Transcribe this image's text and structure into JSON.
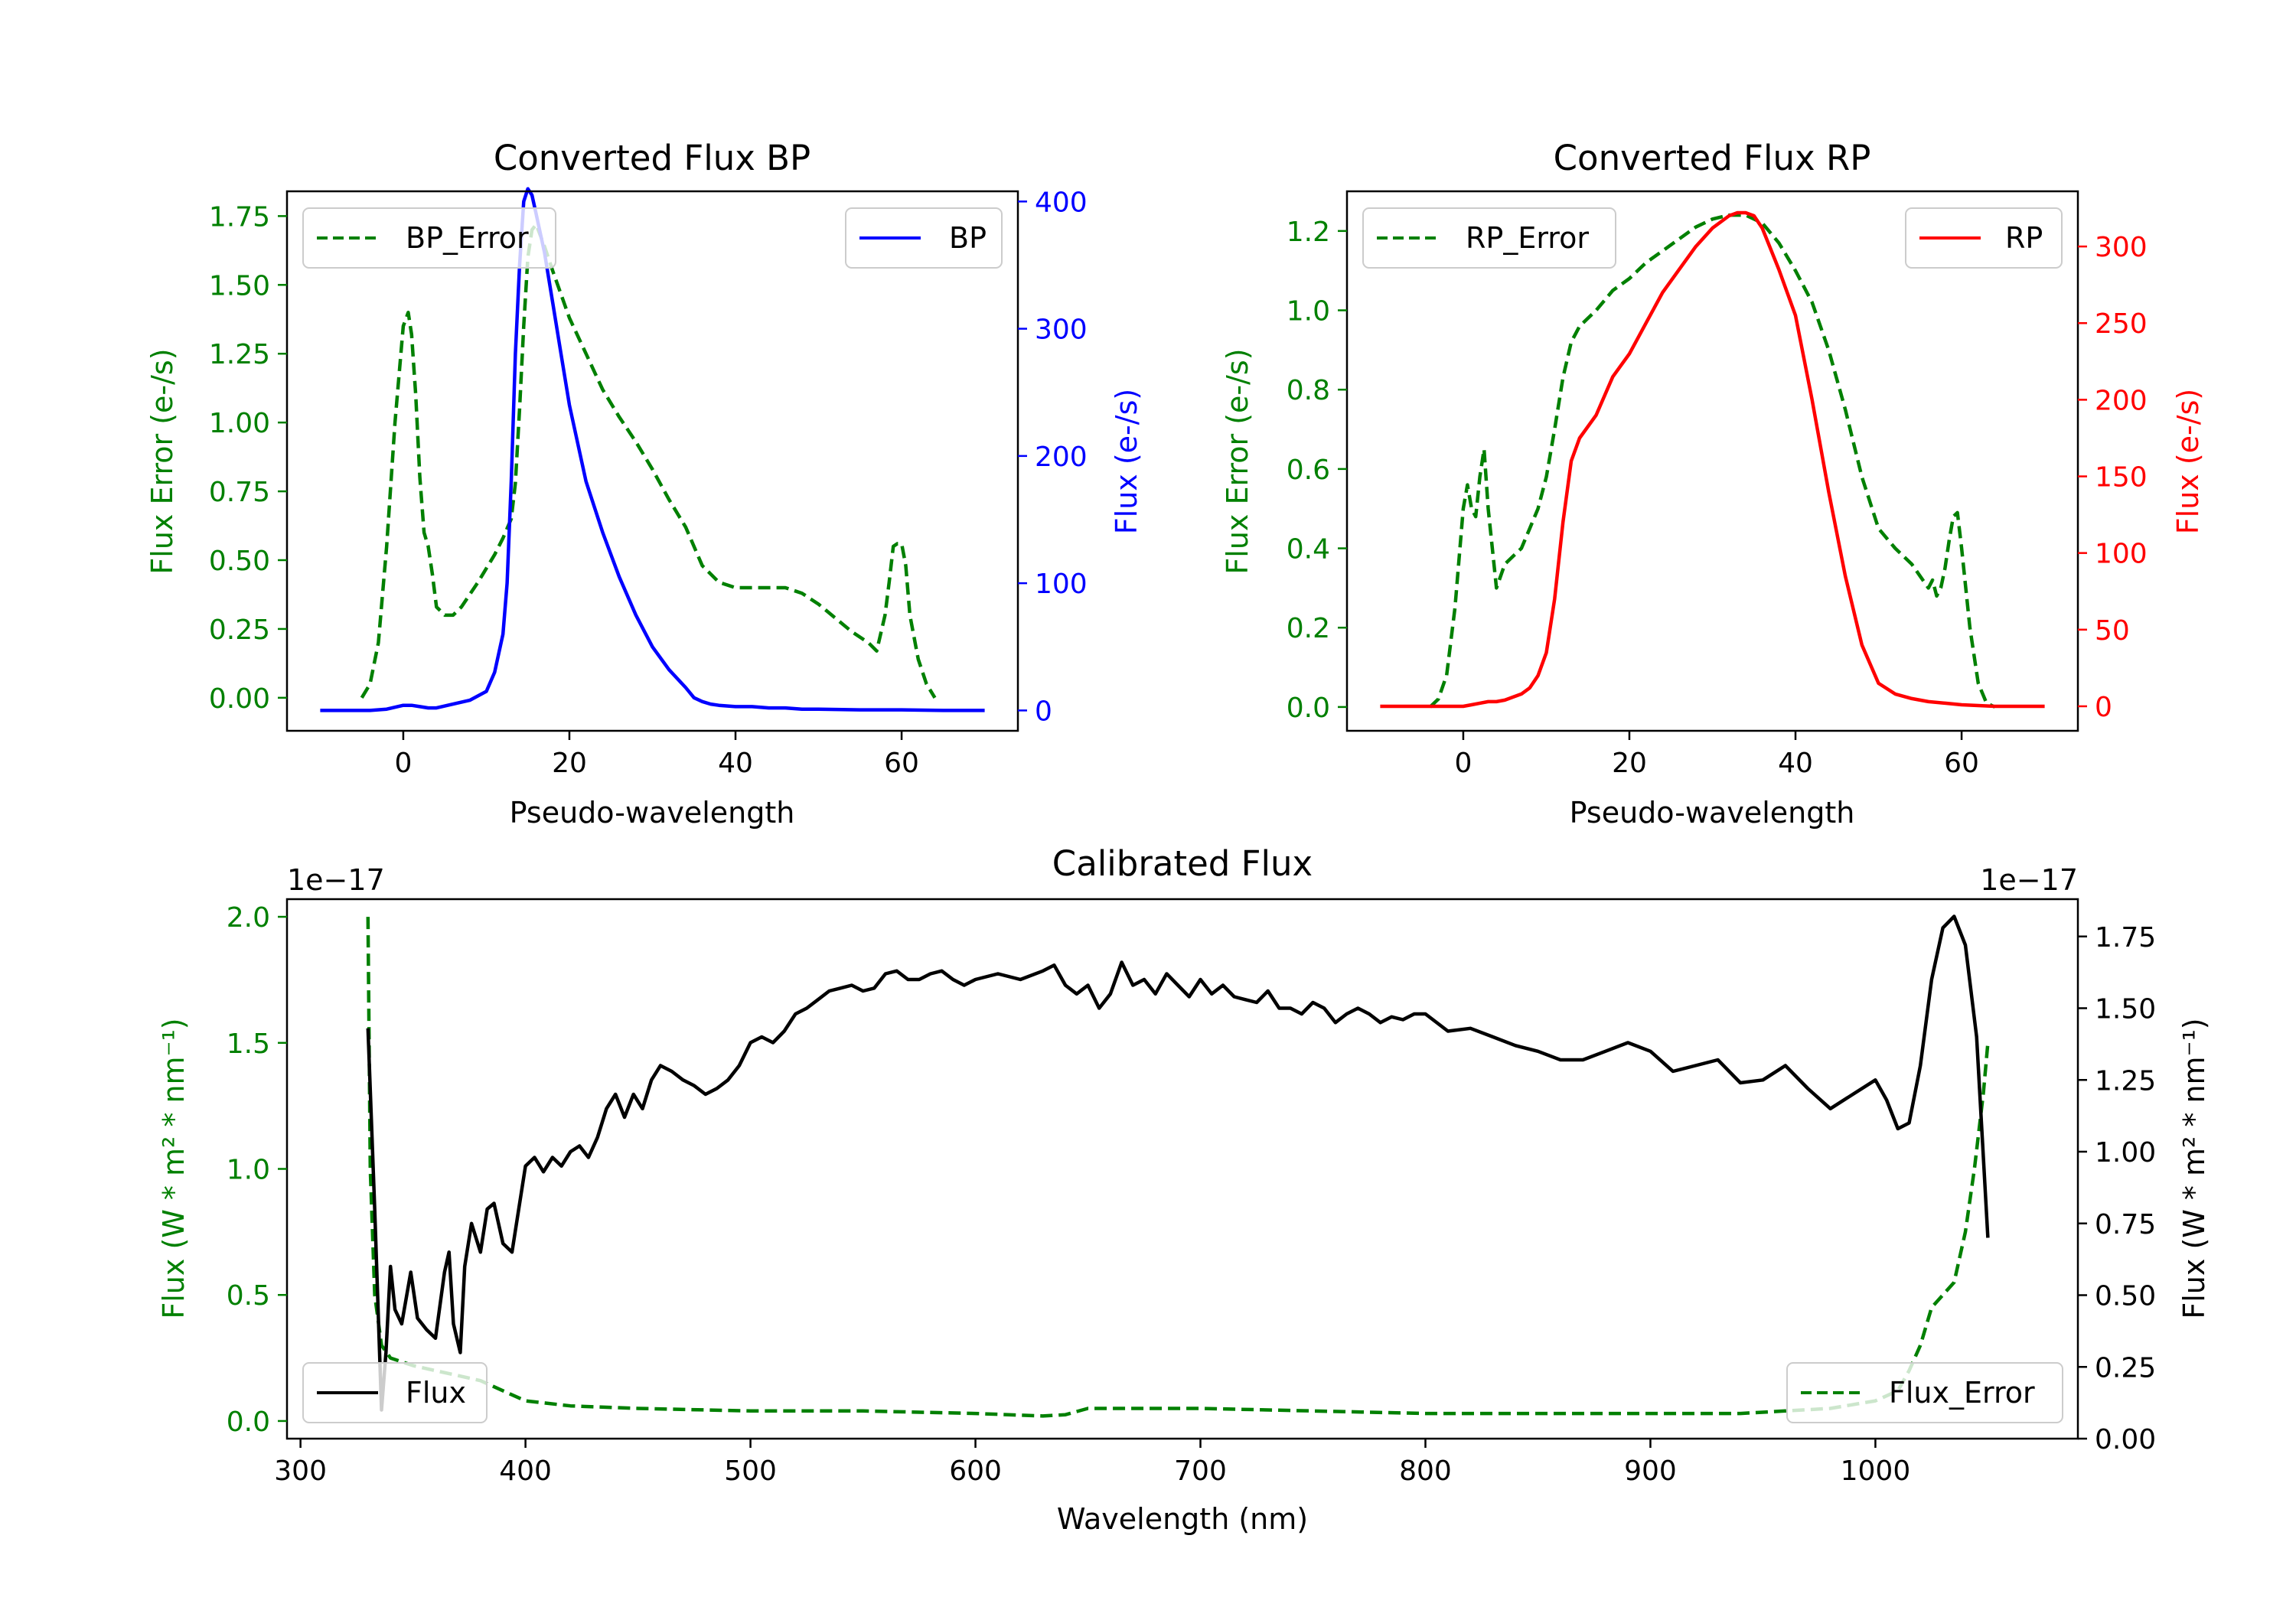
{
  "colors": {
    "green": "#008000",
    "blue": "#0000ff",
    "red": "#ff0000",
    "black": "#000000"
  },
  "chart_data": [
    {
      "type": "line",
      "title": "Converted Flux BP",
      "xlabel": "Pseudo-wavelength",
      "ylabel_left": "Flux Error (e-/s)",
      "ylabel_right": "Flux (e-/s)",
      "xlim": [
        -14,
        74
      ],
      "ylim_left": [
        -0.12,
        1.84
      ],
      "ylim_right": [
        -16,
        408
      ],
      "xticks": [
        0,
        20,
        40,
        60
      ],
      "yticks_left": [
        "0.00",
        "0.25",
        "0.50",
        "0.75",
        "1.00",
        "1.25",
        "1.50",
        "1.75"
      ],
      "yticks_right": [
        "0",
        "100",
        "200",
        "300",
        "400"
      ],
      "legend_left": "BP_Error",
      "legend_right": "BP",
      "series": [
        {
          "name": "BP_Error",
          "axis": "left",
          "color": "green",
          "style": "dashed",
          "x": [
            -5,
            -4,
            -3,
            -2,
            -1,
            0,
            0.6,
            1,
            1.5,
            2,
            2.5,
            3,
            3.5,
            4,
            5,
            6,
            7,
            9,
            11,
            12,
            13,
            13.5,
            14,
            14.5,
            15,
            15.5,
            16,
            17,
            18,
            20,
            22,
            24,
            26,
            28,
            30,
            32,
            34,
            36,
            38,
            40,
            42,
            44,
            46,
            48,
            50,
            52,
            54,
            56,
            57,
            58,
            58.5,
            59,
            59.5,
            60,
            60.5,
            61,
            62,
            63,
            64
          ],
          "y": [
            0,
            0.05,
            0.2,
            0.55,
            1.0,
            1.35,
            1.4,
            1.32,
            1.1,
            0.8,
            0.6,
            0.55,
            0.45,
            0.33,
            0.3,
            0.3,
            0.33,
            0.42,
            0.52,
            0.58,
            0.65,
            0.78,
            1.05,
            1.35,
            1.6,
            1.7,
            1.72,
            1.64,
            1.55,
            1.38,
            1.25,
            1.12,
            1.02,
            0.93,
            0.83,
            0.72,
            0.62,
            0.48,
            0.42,
            0.4,
            0.4,
            0.4,
            0.4,
            0.38,
            0.34,
            0.29,
            0.24,
            0.2,
            0.17,
            0.3,
            0.42,
            0.55,
            0.56,
            0.56,
            0.48,
            0.3,
            0.14,
            0.05,
            0
          ]
        },
        {
          "name": "BP",
          "axis": "right",
          "color": "blue",
          "style": "solid",
          "x": [
            -10,
            -4,
            -2,
            0,
            1,
            2,
            3,
            4,
            6,
            8,
            10,
            11,
            12,
            12.5,
            13,
            13.5,
            14,
            14.5,
            15,
            15.5,
            16,
            17,
            18,
            19,
            20,
            22,
            24,
            26,
            28,
            30,
            32,
            34,
            35,
            36,
            37,
            38,
            40,
            42,
            44,
            46,
            48,
            50,
            55,
            60,
            65,
            70
          ],
          "y": [
            0,
            0,
            1,
            4,
            4,
            3,
            2,
            2,
            5,
            8,
            15,
            30,
            60,
            100,
            180,
            280,
            350,
            400,
            410,
            405,
            390,
            360,
            320,
            280,
            240,
            180,
            140,
            105,
            75,
            50,
            32,
            18,
            10,
            7,
            5,
            4,
            3,
            3,
            2,
            2,
            1,
            1,
            0.5,
            0.5,
            0,
            0
          ]
        }
      ]
    },
    {
      "type": "line",
      "title": "Converted Flux RP",
      "xlabel": "Pseudo-wavelength",
      "ylabel_left": "Flux Error (e-/s)",
      "ylabel_right": "Flux (e-/s)",
      "xlim": [
        -14,
        74
      ],
      "ylim_left": [
        -0.06,
        1.3
      ],
      "ylim_right": [
        -16,
        336
      ],
      "xticks": [
        0,
        20,
        40,
        60
      ],
      "yticks_left": [
        "0.0",
        "0.2",
        "0.4",
        "0.6",
        "0.8",
        "1.0",
        "1.2"
      ],
      "yticks_right": [
        "0",
        "50",
        "100",
        "150",
        "200",
        "250",
        "300"
      ],
      "legend_left": "RP_Error",
      "legend_right": "RP",
      "series": [
        {
          "name": "RP_Error",
          "axis": "left",
          "color": "green",
          "style": "dashed",
          "x": [
            -4,
            -3,
            -2,
            -1,
            0,
            0.5,
            1,
            1.5,
            2,
            2.5,
            3,
            3.5,
            4,
            5,
            6,
            7,
            8,
            9,
            10,
            11,
            12,
            13,
            14,
            16,
            18,
            20,
            22,
            24,
            26,
            28,
            30,
            32,
            34,
            36,
            38,
            40,
            42,
            44,
            46,
            48,
            50,
            52,
            54,
            55,
            56,
            56.5,
            57,
            57.5,
            58,
            58.5,
            59,
            59.5,
            60,
            61,
            62,
            63,
            64
          ],
          "y": [
            0,
            0.02,
            0.08,
            0.25,
            0.5,
            0.56,
            0.5,
            0.48,
            0.58,
            0.65,
            0.5,
            0.4,
            0.3,
            0.36,
            0.38,
            0.4,
            0.45,
            0.5,
            0.58,
            0.7,
            0.83,
            0.92,
            0.96,
            1.0,
            1.05,
            1.08,
            1.12,
            1.15,
            1.18,
            1.21,
            1.23,
            1.24,
            1.24,
            1.22,
            1.17,
            1.1,
            1.02,
            0.9,
            0.75,
            0.58,
            0.45,
            0.4,
            0.36,
            0.33,
            0.3,
            0.32,
            0.28,
            0.3,
            0.35,
            0.42,
            0.48,
            0.49,
            0.4,
            0.2,
            0.06,
            0.01,
            0
          ]
        },
        {
          "name": "RP",
          "axis": "right",
          "color": "red",
          "style": "solid",
          "x": [
            -10,
            -2,
            0,
            1,
            2,
            3,
            4,
            5,
            6,
            7,
            8,
            9,
            10,
            11,
            12,
            13,
            14,
            16,
            18,
            20,
            22,
            24,
            26,
            28,
            30,
            32,
            33,
            34,
            35,
            36,
            38,
            40,
            42,
            44,
            46,
            48,
            50,
            52,
            54,
            56,
            58,
            60,
            62,
            64,
            70
          ],
          "y": [
            0,
            0,
            0,
            1,
            2,
            3,
            3,
            4,
            6,
            8,
            12,
            20,
            35,
            70,
            120,
            160,
            175,
            190,
            215,
            230,
            250,
            270,
            285,
            300,
            312,
            320,
            322,
            322,
            320,
            312,
            285,
            255,
            200,
            140,
            85,
            40,
            15,
            8,
            5,
            3,
            2,
            1,
            0.5,
            0,
            0
          ]
        }
      ]
    },
    {
      "type": "line",
      "title": "Calibrated Flux",
      "xlabel": "Wavelength (nm)",
      "ylabel_left": "Flux (W * m² * nm⁻¹)",
      "ylabel_right": "Flux (W * m² * nm⁻¹)",
      "offset_left": "1e−17",
      "offset_right": "1e−17",
      "xlim": [
        294,
        1090
      ],
      "ylim_left": [
        -0.07,
        2.07
      ],
      "ylim_right": [
        0,
        1.88
      ],
      "xticks": [
        300,
        400,
        500,
        600,
        700,
        800,
        900,
        1000
      ],
      "yticks_left": [
        "0.0",
        "0.5",
        "1.0",
        "1.5",
        "2.0"
      ],
      "yticks_right": [
        "0.00",
        "0.25",
        "0.50",
        "0.75",
        "1.00",
        "1.25",
        "1.50",
        "1.75"
      ],
      "legend_left": "Flux",
      "legend_right": "Flux_Error",
      "series": [
        {
          "name": "Flux_Error",
          "axis": "left",
          "color": "green",
          "style": "dashed",
          "x": [
            330,
            331,
            333,
            336,
            340,
            350,
            360,
            370,
            380,
            390,
            400,
            420,
            450,
            500,
            550,
            600,
            630,
            640,
            650,
            700,
            750,
            800,
            850,
            900,
            940,
            960,
            980,
            1000,
            1010,
            1015,
            1020,
            1025,
            1030,
            1035,
            1040,
            1044,
            1048,
            1050
          ],
          "y": [
            2.0,
            1.0,
            0.5,
            0.3,
            0.25,
            0.22,
            0.2,
            0.18,
            0.16,
            0.12,
            0.08,
            0.06,
            0.05,
            0.04,
            0.04,
            0.03,
            0.02,
            0.025,
            0.05,
            0.05,
            0.04,
            0.03,
            0.03,
            0.03,
            0.03,
            0.04,
            0.05,
            0.08,
            0.12,
            0.2,
            0.3,
            0.45,
            0.5,
            0.55,
            0.75,
            1.0,
            1.3,
            1.5
          ]
        },
        {
          "name": "Flux",
          "axis": "right",
          "color": "black",
          "style": "solid",
          "x": [
            330,
            333,
            336,
            338,
            340,
            342,
            345,
            349,
            352,
            356,
            360,
            364,
            366,
            368,
            371,
            373,
            376,
            380,
            383,
            386,
            390,
            394,
            397,
            400,
            404,
            408,
            412,
            416,
            420,
            424,
            428,
            432,
            436,
            440,
            444,
            448,
            452,
            456,
            460,
            465,
            470,
            475,
            480,
            485,
            490,
            495,
            500,
            505,
            510,
            515,
            520,
            525,
            530,
            535,
            540,
            545,
            550,
            555,
            560,
            565,
            570,
            575,
            580,
            585,
            590,
            595,
            600,
            610,
            620,
            630,
            635,
            640,
            645,
            650,
            655,
            660,
            665,
            670,
            675,
            680,
            685,
            690,
            695,
            700,
            705,
            710,
            715,
            720,
            725,
            730,
            735,
            740,
            745,
            750,
            755,
            760,
            765,
            770,
            775,
            780,
            785,
            790,
            795,
            800,
            810,
            820,
            830,
            840,
            850,
            860,
            870,
            880,
            890,
            900,
            910,
            920,
            930,
            940,
            950,
            960,
            970,
            980,
            990,
            1000,
            1005,
            1010,
            1015,
            1020,
            1025,
            1030,
            1035,
            1040,
            1045,
            1050
          ],
          "y": [
            1.43,
            0.8,
            0.1,
            0.3,
            0.6,
            0.45,
            0.4,
            0.58,
            0.42,
            0.38,
            0.35,
            0.58,
            0.65,
            0.4,
            0.3,
            0.6,
            0.75,
            0.65,
            0.8,
            0.82,
            0.68,
            0.65,
            0.8,
            0.95,
            0.98,
            0.93,
            0.98,
            0.95,
            1.0,
            1.02,
            0.98,
            1.05,
            1.15,
            1.2,
            1.12,
            1.2,
            1.15,
            1.25,
            1.3,
            1.28,
            1.25,
            1.23,
            1.2,
            1.22,
            1.25,
            1.3,
            1.38,
            1.4,
            1.38,
            1.42,
            1.48,
            1.5,
            1.53,
            1.56,
            1.57,
            1.58,
            1.56,
            1.57,
            1.62,
            1.63,
            1.6,
            1.6,
            1.62,
            1.63,
            1.6,
            1.58,
            1.6,
            1.62,
            1.6,
            1.63,
            1.65,
            1.58,
            1.55,
            1.58,
            1.5,
            1.55,
            1.66,
            1.58,
            1.6,
            1.55,
            1.62,
            1.58,
            1.54,
            1.6,
            1.55,
            1.58,
            1.54,
            1.53,
            1.52,
            1.56,
            1.5,
            1.5,
            1.48,
            1.52,
            1.5,
            1.45,
            1.48,
            1.5,
            1.48,
            1.45,
            1.47,
            1.46,
            1.48,
            1.48,
            1.42,
            1.43,
            1.4,
            1.37,
            1.35,
            1.32,
            1.32,
            1.35,
            1.38,
            1.35,
            1.28,
            1.3,
            1.32,
            1.24,
            1.25,
            1.3,
            1.22,
            1.15,
            1.2,
            1.25,
            1.18,
            1.08,
            1.1,
            1.3,
            1.6,
            1.78,
            1.82,
            1.72,
            1.4,
            0.7
          ]
        }
      ]
    }
  ]
}
